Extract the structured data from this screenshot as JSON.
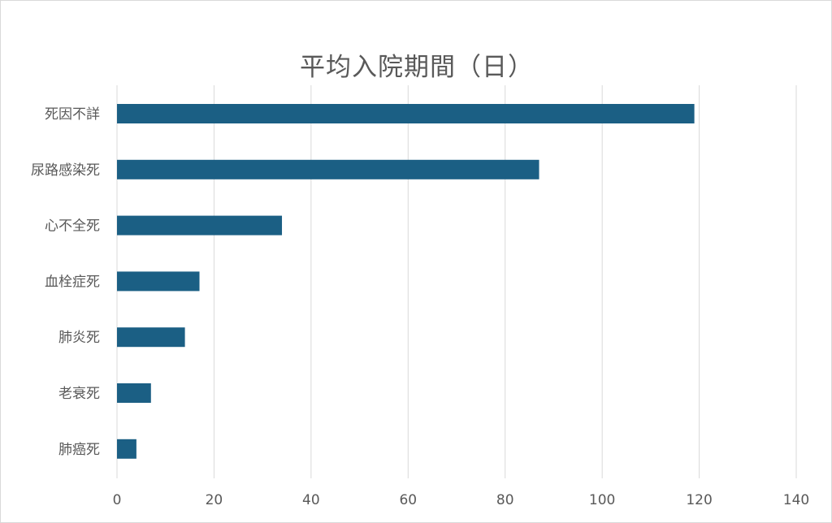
{
  "chart_data": {
    "type": "bar",
    "orientation": "horizontal",
    "title": "平均入院期間（日）",
    "categories": [
      "死因不詳",
      "尿路感染死",
      "心不全死",
      "血栓症死",
      "肺炎死",
      "老衰死",
      "肺癌死"
    ],
    "values": [
      119,
      87,
      34,
      17,
      14,
      7,
      4
    ],
    "xlim": [
      0,
      140
    ],
    "x_ticks": [
      "0",
      "20",
      "40",
      "60",
      "80",
      "100",
      "120",
      "140"
    ],
    "grid": "vertical",
    "legend": "none",
    "colors": {
      "bar": "#1b5f84",
      "grid": "#d9d9d9",
      "text": "#595959"
    }
  }
}
